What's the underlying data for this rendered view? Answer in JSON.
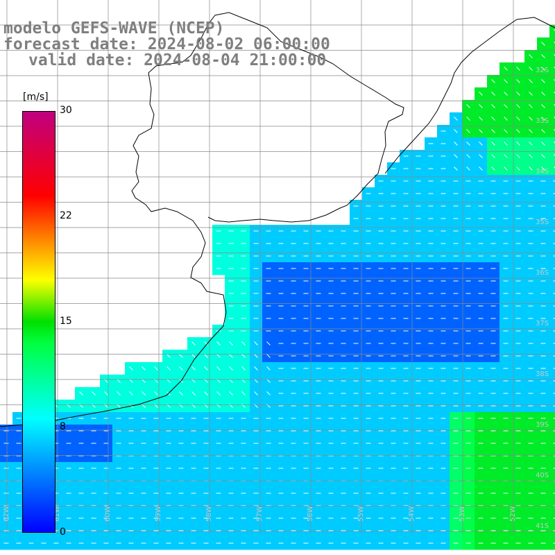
{
  "title": {
    "model": "modelo GEFS-WAVE (NCEP)",
    "forecast": "forecast date: 2024-08-02 06:00:00",
    "valid": "valid date: 2024-08-04 21:00:00"
  },
  "colorbar": {
    "unit": "[m/s]",
    "ticks": [
      "30",
      "22",
      "15",
      "8",
      "0"
    ],
    "range": [
      0,
      30
    ],
    "colors": [
      "#0000ff",
      "#00aaff",
      "#00ffff",
      "#00ff40",
      "#ffff00",
      "#ff8000",
      "#ff0000",
      "#c0007f"
    ]
  },
  "map": {
    "ocean_base_color": "#0a6cf0",
    "land_color": "#ffffff",
    "coast_color": "#000000",
    "grid_color": "#888888",
    "lat_labels": [
      "32S",
      "33S",
      "34S",
      "35S",
      "36S",
      "37S",
      "38S",
      "39S",
      "40S",
      "41S"
    ],
    "lon_labels": [
      "62W",
      "61W",
      "60W",
      "59W",
      "58W",
      "57W",
      "56W",
      "55W",
      "54W",
      "53W",
      "52W"
    ]
  }
}
